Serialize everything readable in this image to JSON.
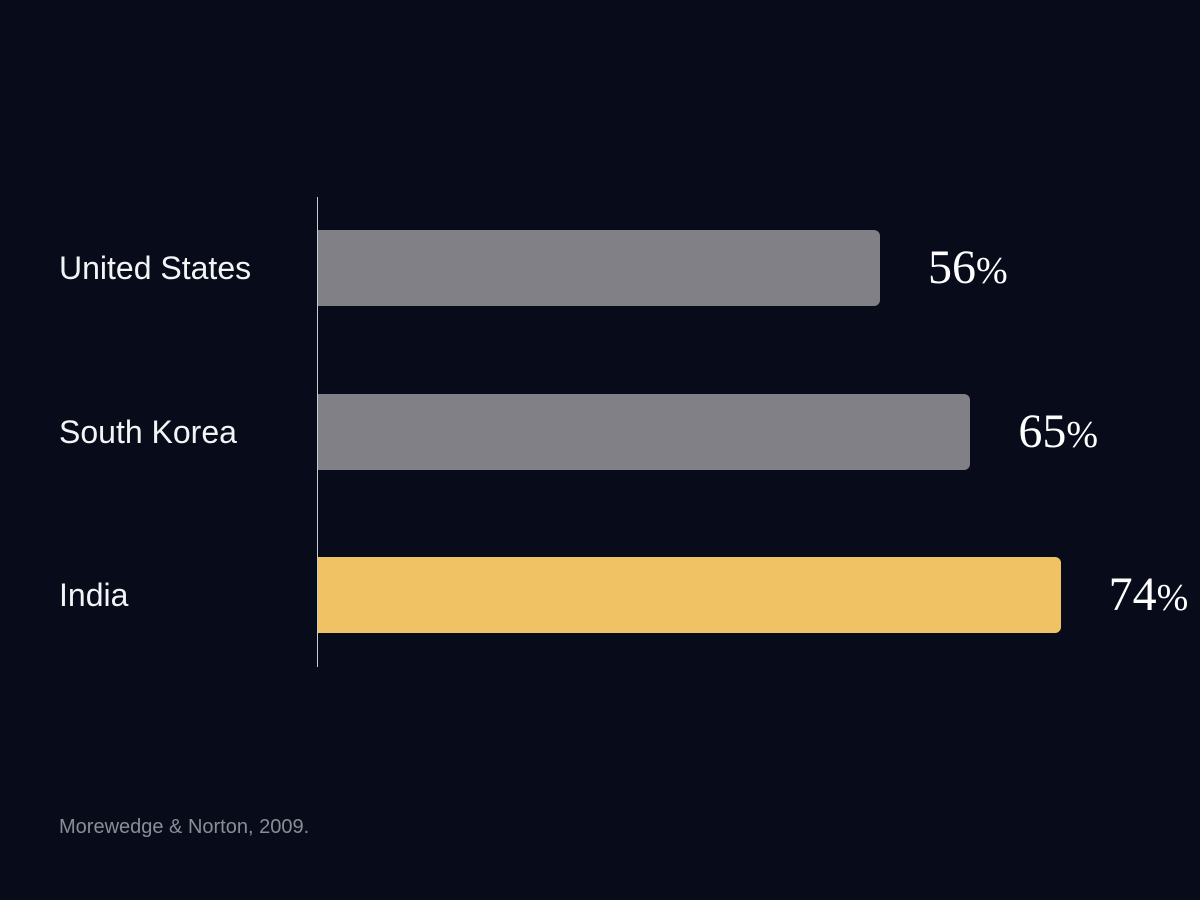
{
  "chart_data": {
    "type": "bar",
    "orientation": "horizontal",
    "categories": [
      "United States",
      "South Korea",
      "India"
    ],
    "values": [
      56,
      65,
      74
    ],
    "value_labels": [
      "56",
      "65",
      "74"
    ],
    "value_suffix": "%",
    "colors": [
      "#828087",
      "#828087",
      "#f0c264"
    ],
    "highlighted_category": "India",
    "title": "",
    "xlabel": "",
    "ylabel": "",
    "grid": false,
    "legend": "none"
  },
  "source": "Morewedge & Norton, 2009."
}
